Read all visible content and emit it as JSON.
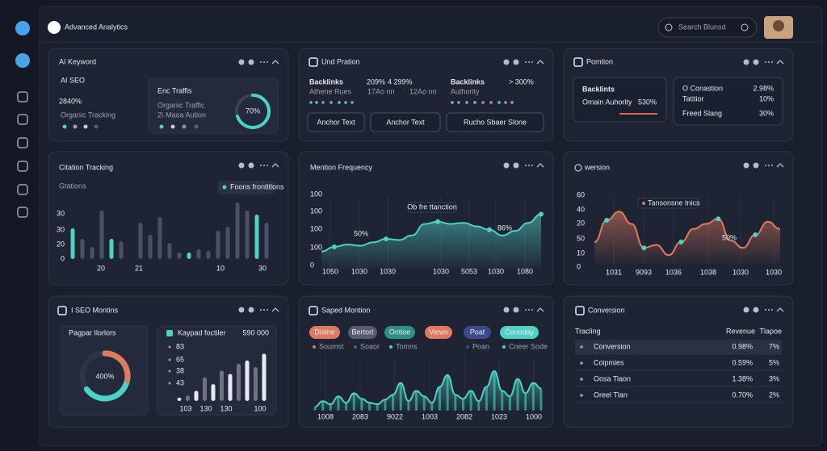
{
  "header": {
    "title": "Advanced Analytics",
    "search": "Search Blunsd"
  },
  "keyword": {
    "title": "AI Keyword",
    "subtitle": "AI SEO",
    "value": "2840%",
    "label": "Organic Tracking",
    "card": {
      "title": "Enc Traffis",
      "label": "Organic Traffic",
      "note": "2\\ Maoa Aution",
      "gauge": 70,
      "gauge_label": "70%"
    }
  },
  "backlinks": {
    "title": "Und Pration",
    "items": [
      {
        "name": "Backlinks",
        "value": "209%",
        "change": "4 299%",
        "sub": "Athene Rues",
        "sub2": "17Ao nn"
      },
      {
        "name": "Backlinks",
        "value": "> 300%",
        "sub": "Authority",
        "sub2": "12Ao nn"
      }
    ],
    "buttons": [
      "Anchor Text",
      "Anchor Text",
      "Rucho Sbaer Slone"
    ]
  },
  "position": {
    "title": "Pomtion",
    "card1": {
      "title": "Backlints",
      "label": "Omain Auhority",
      "value": "530%"
    },
    "card2": {
      "rows": [
        [
          "O Conastion",
          "2.98%"
        ],
        [
          "Tatitior",
          "10%"
        ],
        [
          "Freed Slang",
          "30%"
        ]
      ]
    }
  },
  "citation": {
    "title": "Citation Tracking",
    "subtitle": "Gtations",
    "chip": "Foons frontitlons",
    "y_labels": [
      "30",
      "30",
      "20",
      "0"
    ],
    "x_labels": [
      "20",
      "21",
      "10",
      "30"
    ],
    "ylim": [
      0,
      75
    ],
    "series": [
      {
        "color": "#4fd1c5",
        "values": [
          38,
          null,
          null,
          null,
          25,
          null,
          null,
          null,
          null,
          null,
          null,
          null,
          8,
          null,
          null,
          null,
          null,
          null,
          null,
          55,
          null
        ]
      },
      {
        "color": "#4a5163",
        "values": [
          null,
          25,
          15,
          60,
          null,
          22,
          null,
          45,
          30,
          52,
          20,
          8,
          null,
          12,
          10,
          35,
          40,
          70,
          60,
          null,
          45
        ]
      }
    ]
  },
  "mention": {
    "title": "Mention Frequency",
    "y_labels": [
      "100",
      "100",
      "100",
      "100",
      "0"
    ],
    "x_labels": [
      "1050",
      "1030",
      "1030",
      "1030",
      "5053",
      "1030",
      "1080"
    ],
    "ylim": [
      0,
      100
    ],
    "color": "#4fd1c5",
    "values": [
      30,
      38,
      42,
      40,
      46,
      52,
      50,
      58,
      78,
      82,
      78,
      80,
      74,
      68,
      58,
      66,
      80,
      95
    ],
    "annotations": [
      "Ob fre ttanction",
      "50%",
      "86%"
    ]
  },
  "oversion": {
    "title": "wersion",
    "y_labels": [
      "60",
      "40",
      "20",
      "50",
      "10",
      "0"
    ],
    "x_labels": [
      "1031",
      "9093",
      "1036",
      "1038",
      "1030",
      "1030"
    ],
    "ylim": [
      0,
      80
    ],
    "color": "#e07a5f",
    "values": [
      30,
      60,
      72,
      55,
      22,
      26,
      12,
      30,
      48,
      55,
      62,
      32,
      22,
      40,
      58,
      48
    ],
    "annotations": [
      "Tansonsne tnics",
      "50%"
    ]
  },
  "seo": {
    "title": "I SEO Montins",
    "card1": {
      "title": "Pagpar Ilorlors",
      "donut": 65,
      "label": "400%"
    },
    "card2": {
      "chip": "Kaypad foctiler",
      "value": "590 000",
      "y_labels": [
        "83",
        "65",
        "38",
        "43"
      ],
      "x_labels": [
        "103",
        "130",
        "130",
        "100"
      ],
      "ylim": [
        0,
        80
      ],
      "values": [
        5,
        8,
        15,
        35,
        25,
        45,
        40,
        55,
        60,
        50,
        70
      ]
    }
  },
  "speed": {
    "title": "Saped Montion",
    "pills": [
      {
        "name": "Dniine",
        "color": "#e07a5f"
      },
      {
        "name": "Bertort",
        "color": "#565c6c"
      },
      {
        "name": "Ontioe",
        "color": "#2f8f86"
      },
      {
        "name": "Views",
        "color": "#e07a5f"
      },
      {
        "name": "Poat",
        "color": "#3d4a8a"
      },
      {
        "name": "Conoday",
        "color": "#4fd1c5"
      }
    ],
    "legend": [
      "Soumst",
      "Soaor",
      "Tomns",
      "Poan",
      "Cneer Sode"
    ],
    "x_labels": [
      "1008",
      "2083",
      "9022",
      "1003",
      "2082",
      "1023",
      "1000"
    ],
    "ylim": [
      0,
      60
    ],
    "color": "#4fd1c5",
    "values": [
      5,
      12,
      8,
      18,
      10,
      22,
      15,
      10,
      8,
      14,
      20,
      35,
      12,
      25,
      18,
      10,
      30,
      45,
      20,
      15,
      25,
      12,
      30,
      50,
      25,
      18,
      40,
      22,
      35,
      28
    ]
  },
  "conversion": {
    "title": "Conversion",
    "columns": [
      "Tracling",
      "Revenue",
      "Tlapoe"
    ],
    "rows": [
      [
        "Conversion",
        "0.98%",
        "7%"
      ],
      [
        "Coipmies",
        "0.59%",
        "5%"
      ],
      [
        "Oosa Tiaon",
        "1.38%",
        "3%"
      ],
      [
        "Oreel Tlan",
        "0.70%",
        "2%"
      ]
    ]
  }
}
